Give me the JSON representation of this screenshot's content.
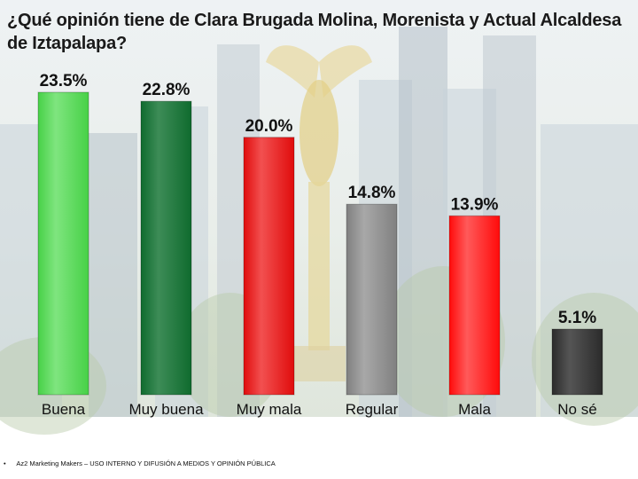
{
  "title": "¿Qué opinión tiene de Clara Brugada Molina, Morenista y Actual Alcaldesa de Iztapalapa?",
  "footer": {
    "bullet": "•",
    "text": "Az2 Marketing Makers – USO INTERNO Y DIFUSIÓN A MEDIOS Y OPINIÓN PÚBLICA"
  },
  "chart_data": {
    "type": "bar",
    "title": "¿Qué opinión tiene de Clara Brugada Molina, Morenista y Actual Alcaldesa de Iztapalapa?",
    "categories": [
      "Buena",
      "Muy buena",
      "Muy mala",
      "Regular",
      "Mala",
      "No sé"
    ],
    "values": [
      23.5,
      22.8,
      20.0,
      14.8,
      13.9,
      5.1
    ],
    "value_labels": [
      "23.5%",
      "22.8%",
      "20.0%",
      "14.8%",
      "13.9%",
      "5.1%"
    ],
    "colors": [
      "#47d147",
      "#0f6b2e",
      "#e00c0c",
      "#808080",
      "#ff0a0a",
      "#2b2b2b"
    ],
    "highlight_colors": [
      "#7fe57f",
      "#3d8c57",
      "#f25050",
      "#a8a8a8",
      "#ff5a5a",
      "#555555"
    ],
    "ylim": [
      0,
      23.5
    ],
    "grid": false,
    "legend": "none"
  }
}
